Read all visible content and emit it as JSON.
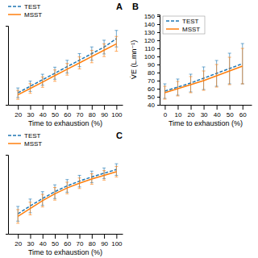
{
  "chart_data": [
    {
      "type": "line",
      "title": "A",
      "xlabel": "Time to exhaustion (%)",
      "x": [
        20,
        30,
        40,
        50,
        60,
        70,
        80,
        90,
        100
      ],
      "xlim": [
        12,
        105
      ],
      "xticks": [
        20,
        30,
        40,
        50,
        60,
        70,
        80,
        90,
        100
      ],
      "ylim": [
        200,
        4800
      ],
      "tick_labels": "x",
      "grid": false,
      "legend": "above",
      "series": [
        {
          "name": "TEST",
          "line_style": "dashed",
          "values": [
            900,
            1280,
            1660,
            2040,
            2420,
            2800,
            3180,
            3560,
            4050
          ],
          "errors": [
            280,
            300,
            320,
            350,
            370,
            380,
            390,
            400,
            480
          ]
        },
        {
          "name": "MSST",
          "line_style": "solid",
          "values": [
            780,
            1150,
            1520,
            1900,
            2270,
            2640,
            3010,
            3380,
            3750
          ],
          "errors": [
            260,
            280,
            300,
            330,
            340,
            350,
            360,
            370,
            430
          ]
        }
      ]
    },
    {
      "type": "line",
      "title": "B",
      "xlabel": "Time to exhaustion (%)",
      "ylabel": "V̇E (L.mn⁻¹)",
      "x": [
        0,
        10,
        20,
        30,
        40,
        50,
        60
      ],
      "xlim": [
        -4,
        67
      ],
      "xticks": [
        0,
        10,
        20,
        30,
        40,
        50,
        60
      ],
      "ylim": [
        40,
        152
      ],
      "yticks": [
        40,
        50,
        60,
        70,
        80,
        90,
        100,
        110,
        120,
        130,
        140,
        150
      ],
      "grid": false,
      "legend": "upper left",
      "series": [
        {
          "name": "TEST",
          "line_style": "dashed",
          "values": [
            57,
            62,
            67,
            73,
            79,
            85,
            91
          ],
          "errors": [
            9,
            10,
            11,
            14,
            16,
            19,
            25
          ]
        },
        {
          "name": "MSST",
          "line_style": "solid",
          "values": [
            55,
            60,
            65,
            70,
            76,
            82,
            88
          ],
          "errors": [
            8,
            9,
            10,
            12,
            14,
            17,
            22
          ]
        }
      ]
    },
    {
      "type": "line",
      "title": "C",
      "xlabel": "Time to exhaustion (%)",
      "x": [
        20,
        30,
        40,
        50,
        60,
        70,
        80,
        90,
        100
      ],
      "xlim": [
        12,
        105
      ],
      "xticks": [
        20,
        30,
        40,
        50,
        60,
        70,
        80,
        90,
        100
      ],
      "ylim": [
        80,
        230
      ],
      "tick_labels": "x",
      "grid": false,
      "legend": "above",
      "series": [
        {
          "name": "TEST",
          "line_style": "dashed",
          "values": [
            118,
            133,
            147,
            160,
            171,
            180,
            188,
            195,
            202
          ],
          "errors": [
            14,
            13,
            13,
            13,
            12,
            11,
            11,
            10,
            11
          ]
        },
        {
          "name": "MSST",
          "line_style": "solid",
          "values": [
            113,
            128,
            143,
            156,
            167,
            176,
            184,
            191,
            198
          ],
          "errors": [
            13,
            12,
            12,
            12,
            11,
            10,
            10,
            9,
            10
          ]
        }
      ]
    }
  ]
}
